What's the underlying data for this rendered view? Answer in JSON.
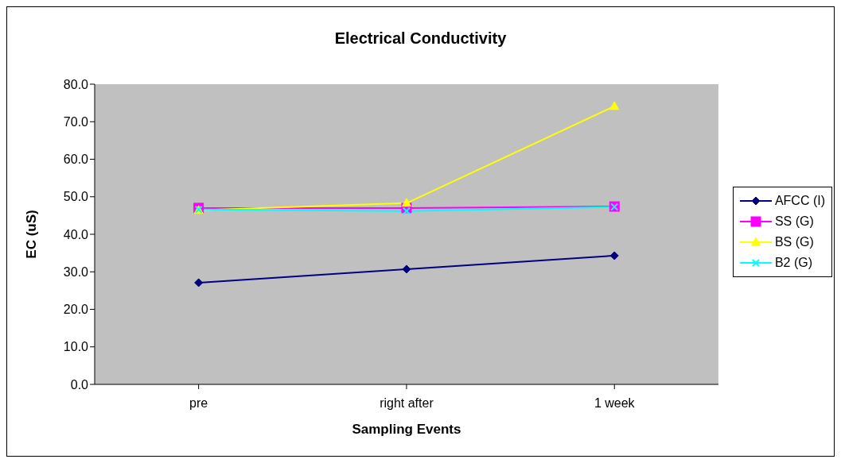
{
  "chart_data": {
    "type": "line",
    "title": "Electrical Conductivity",
    "xlabel": "Sampling Events",
    "ylabel": "EC (uS)",
    "categories": [
      "pre",
      "right after",
      "1 week"
    ],
    "series": [
      {
        "name": "AFCC (I)",
        "color": "#000080",
        "marker": "diamond",
        "values": [
          27.1,
          30.7,
          34.3
        ]
      },
      {
        "name": "SS (G)",
        "color": "#ff00ff",
        "marker": "square",
        "values": [
          47.0,
          47.0,
          47.4
        ]
      },
      {
        "name": "BS (G)",
        "color": "#ffff00",
        "marker": "triangle",
        "values": [
          46.4,
          48.3,
          74.1
        ]
      },
      {
        "name": "B2 (G)",
        "color": "#00ffff",
        "marker": "cross",
        "values": [
          46.6,
          46.2,
          47.3
        ]
      }
    ],
    "ylim": [
      0,
      80
    ],
    "yticks": [
      {
        "value": 0,
        "label": "0.0"
      },
      {
        "value": 10,
        "label": "10.0"
      },
      {
        "value": 20,
        "label": "20.0"
      },
      {
        "value": 30,
        "label": "30.0"
      },
      {
        "value": 40,
        "label": "40.0"
      },
      {
        "value": 50,
        "label": "50.0"
      },
      {
        "value": 60,
        "label": "60.0"
      },
      {
        "value": 70,
        "label": "70.0"
      },
      {
        "value": 80,
        "label": "80.0"
      }
    ],
    "grid": false,
    "legend": "right",
    "line_style": "solid"
  }
}
